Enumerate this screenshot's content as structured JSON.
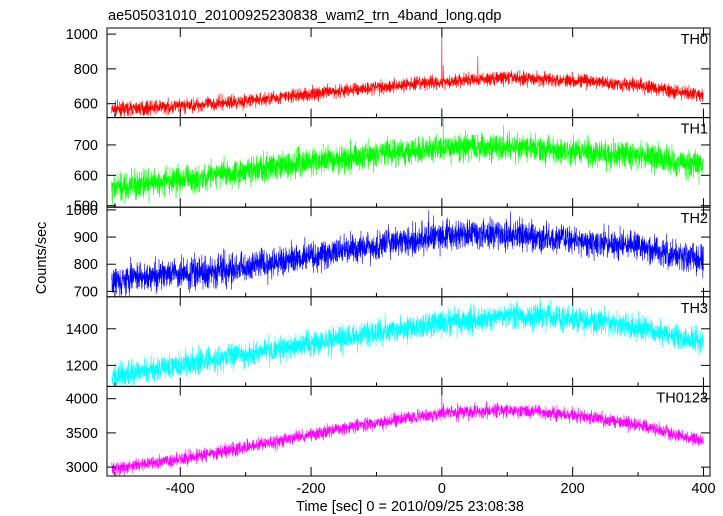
{
  "chart_data": {
    "type": "line",
    "title": "ae505031010_20100925230838_wam2_trn_4band_long.qdp",
    "xlabel": "Time [sec] 0 = 2010/09/25 23:08:38",
    "ylabel": "Counts/sec",
    "xlim": [
      -512,
      410
    ],
    "x_ticks": [
      -400,
      -200,
      0,
      200,
      400
    ],
    "x_range_data": [
      -505,
      400
    ],
    "grid": false,
    "panels": [
      {
        "name": "TH0",
        "color": "#ff0000",
        "ylim": [
          520,
          1035
        ],
        "y_ticks": [
          600,
          800,
          1000
        ],
        "trend_x": [
          -505,
          -400,
          -300,
          -200,
          -100,
          0,
          100,
          200,
          300,
          400
        ],
        "trend_y": [
          565,
          585,
          615,
          655,
          695,
          725,
          750,
          735,
          705,
          645
        ],
        "noise_amplitude": 28,
        "spikes": [
          {
            "x": 0,
            "y": 1030
          },
          {
            "x": 2,
            "y": 820
          },
          {
            "x": 55,
            "y": 870
          }
        ]
      },
      {
        "name": "TH1",
        "color": "#00ff00",
        "ylim": [
          495,
          790
        ],
        "y_ticks": [
          500,
          600,
          700
        ],
        "trend_x": [
          -505,
          -400,
          -300,
          -200,
          -100,
          0,
          100,
          200,
          300,
          400
        ],
        "trend_y": [
          555,
          585,
          615,
          645,
          670,
          690,
          695,
          680,
          665,
          630
        ],
        "noise_amplitude": 32,
        "spikes": [
          {
            "x": 2,
            "y": 790
          }
        ]
      },
      {
        "name": "TH2",
        "color": "#0000ff",
        "ylim": [
          680,
          1010
        ],
        "y_ticks": [
          700,
          800,
          900,
          1000
        ],
        "trend_x": [
          -505,
          -400,
          -300,
          -200,
          -100,
          0,
          100,
          200,
          300,
          400
        ],
        "trend_y": [
          740,
          765,
          790,
          830,
          870,
          905,
          910,
          890,
          865,
          815
        ],
        "noise_amplitude": 38,
        "spikes": [
          {
            "x": -20,
            "y": 1000
          },
          {
            "x": 105,
            "y": 995
          }
        ]
      },
      {
        "name": "TH3",
        "color": "#00ffff",
        "ylim": [
          1085,
          1575
        ],
        "y_ticks": [
          1200,
          1400
        ],
        "trend_x": [
          -505,
          -400,
          -300,
          -200,
          -100,
          0,
          100,
          200,
          300,
          400
        ],
        "trend_y": [
          1140,
          1200,
          1260,
          1320,
          1380,
          1430,
          1470,
          1455,
          1410,
          1330
        ],
        "noise_amplitude": 48,
        "spikes": [
          {
            "x": 150,
            "y": 1575
          }
        ]
      },
      {
        "name": "TH0123",
        "color": "#ff00ff",
        "ylim": [
          2870,
          4180
        ],
        "y_ticks": [
          3000,
          3500,
          4000
        ],
        "trend_x": [
          -505,
          -400,
          -300,
          -200,
          -100,
          0,
          100,
          200,
          300,
          400
        ],
        "trend_y": [
          2980,
          3110,
          3290,
          3480,
          3650,
          3790,
          3830,
          3760,
          3620,
          3380
        ],
        "noise_amplitude": 70,
        "spikes": [
          {
            "x": 0,
            "y": 4175
          },
          {
            "x": 2,
            "y": 3940
          }
        ]
      }
    ]
  }
}
